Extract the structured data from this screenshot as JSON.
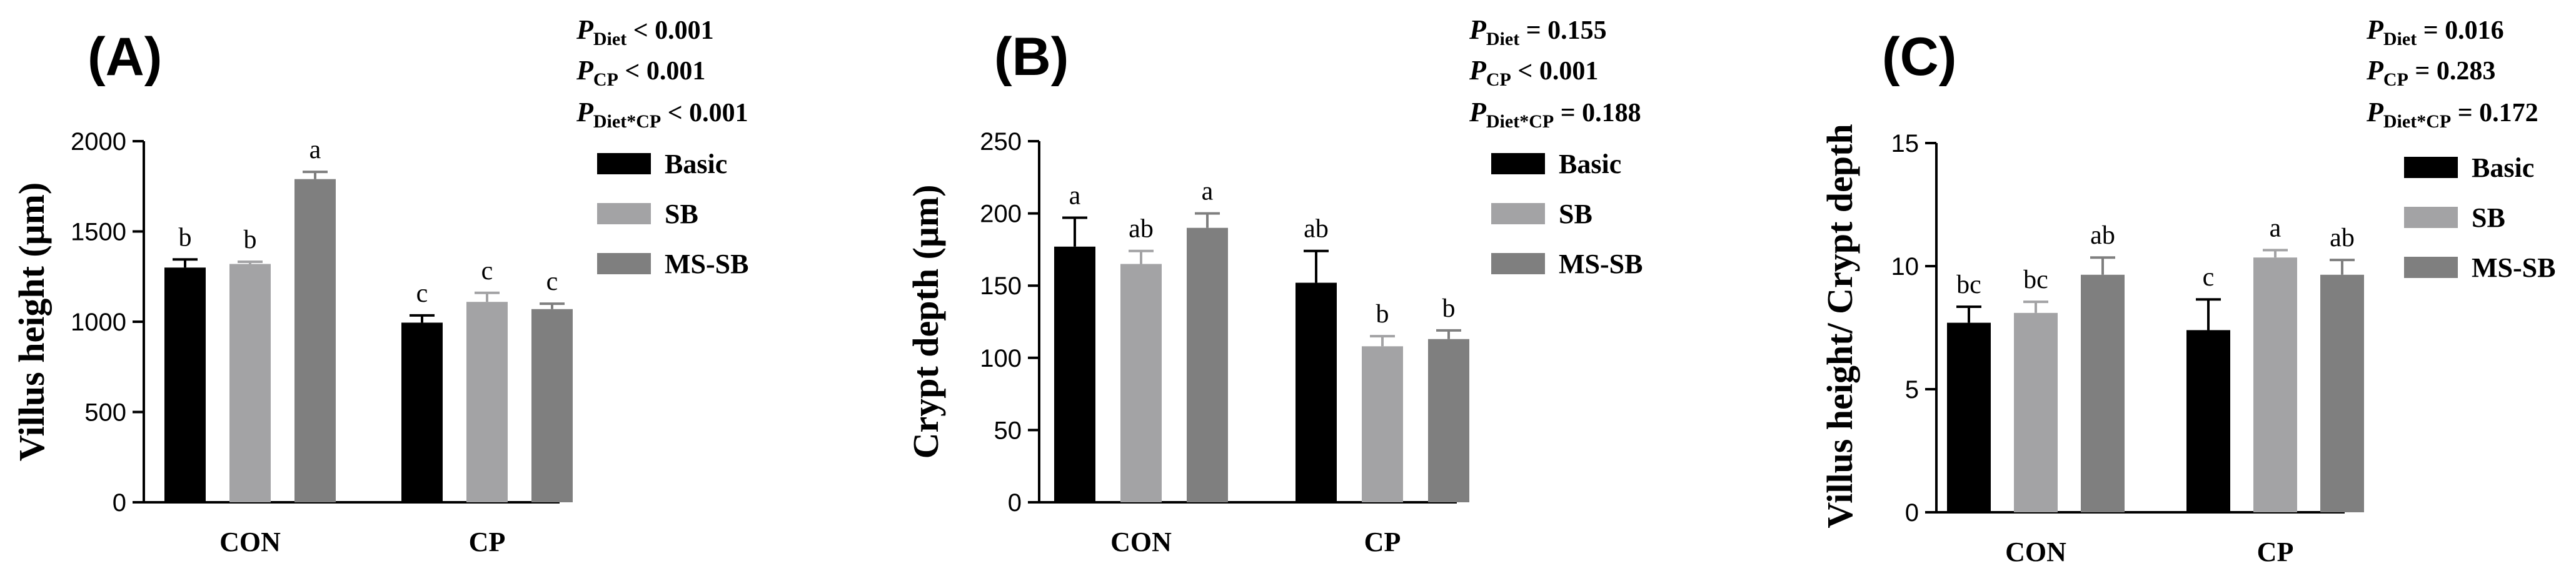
{
  "series_colors": [
    "#000000",
    "#a3a3a5",
    "#7f7f7f"
  ],
  "chart_data": [
    {
      "type": "bar",
      "panel_label": "(A)",
      "ylabel": "Villus height (μm)",
      "categories": [
        "CON",
        "CP"
      ],
      "ylim": [
        0,
        2000
      ],
      "yticks": [
        0,
        500,
        1000,
        1500,
        2000
      ],
      "series": [
        {
          "name": "Basic",
          "values": [
            1300,
            995
          ],
          "errors": [
            45,
            40
          ],
          "letters": [
            "b",
            "c"
          ]
        },
        {
          "name": "SB",
          "values": [
            1320,
            1110
          ],
          "errors": [
            12,
            50
          ],
          "letters": [
            "b",
            "c"
          ]
        },
        {
          "name": "MS-SB",
          "values": [
            1790,
            1070
          ],
          "errors": [
            40,
            30
          ],
          "letters": [
            "a",
            "c"
          ]
        }
      ],
      "stats": [
        {
          "p": "P",
          "sub": "Diet",
          "text": " < 0.001"
        },
        {
          "p": "P",
          "sub": "CP",
          "text": " < 0.001"
        },
        {
          "p": "P",
          "sub": "Diet*CP",
          "text": " < 0.001"
        }
      ]
    },
    {
      "type": "bar",
      "panel_label": "(B)",
      "ylabel": "Crypt depth (μm)",
      "categories": [
        "CON",
        "CP"
      ],
      "ylim": [
        0,
        250
      ],
      "yticks": [
        0,
        50,
        100,
        150,
        200,
        250
      ],
      "series": [
        {
          "name": "Basic",
          "values": [
            177,
            152
          ],
          "errors": [
            20,
            22
          ],
          "letters": [
            "a",
            "ab"
          ]
        },
        {
          "name": "SB",
          "values": [
            165,
            108
          ],
          "errors": [
            9,
            7
          ],
          "letters": [
            "ab",
            "b"
          ]
        },
        {
          "name": "MS-SB",
          "values": [
            190,
            113
          ],
          "errors": [
            10,
            6
          ],
          "letters": [
            "a",
            "b"
          ]
        }
      ],
      "stats": [
        {
          "p": "P",
          "sub": "Diet",
          "text": " = 0.155"
        },
        {
          "p": "P",
          "sub": "CP",
          "text": " < 0.001"
        },
        {
          "p": "P",
          "sub": "Diet*CP",
          "text": " = 0.188"
        }
      ]
    },
    {
      "type": "bar",
      "panel_label": "(C)",
      "ylabel": "Villus height/ Crypt depth",
      "categories": [
        "CON",
        "CP"
      ],
      "ylim": [
        0,
        15
      ],
      "yticks": [
        0,
        5,
        10,
        15
      ],
      "series": [
        {
          "name": "Basic",
          "values": [
            7.7,
            7.4
          ],
          "errors": [
            0.65,
            1.25
          ],
          "letters": [
            "bc",
            "c"
          ]
        },
        {
          "name": "SB",
          "values": [
            8.1,
            10.35
          ],
          "errors": [
            0.45,
            0.3
          ],
          "letters": [
            "bc",
            "a"
          ]
        },
        {
          "name": "MS-SB",
          "values": [
            9.65,
            9.65
          ],
          "errors": [
            0.7,
            0.6
          ],
          "letters": [
            "ab",
            "ab"
          ]
        }
      ],
      "stats": [
        {
          "p": "P",
          "sub": "Diet",
          "text": " = 0.016"
        },
        {
          "p": "P",
          "sub": "CP",
          "text": " = 0.283"
        },
        {
          "p": "P",
          "sub": "Diet*CP",
          "text": " = 0.172"
        }
      ]
    }
  ]
}
